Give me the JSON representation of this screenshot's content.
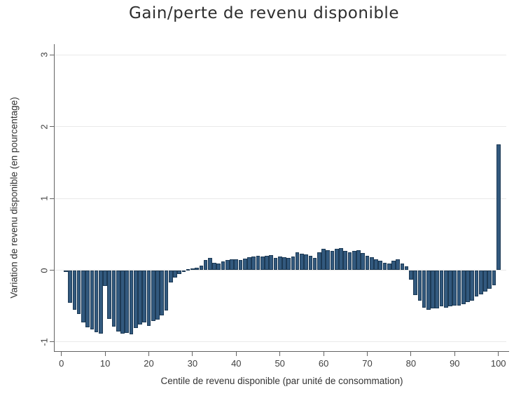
{
  "title": "Gain/perte de revenu disponible",
  "chart_data": {
    "type": "bar",
    "title": "Gain/perte de revenu disponible",
    "xlabel": "Centile de revenu disponible (par unité de consommation)",
    "ylabel": "Variation de revenu disponible (en pourcentage)",
    "x_tick_labels": [
      0,
      10,
      20,
      30,
      40,
      50,
      60,
      70,
      80,
      90,
      100
    ],
    "y_tick_labels": [
      -1,
      0,
      1,
      2,
      3
    ],
    "ylim": [
      -1.15,
      3.15
    ],
    "xlim": [
      -1.5,
      102.5
    ],
    "grid": "horizontal-light",
    "legend": "none",
    "bar_fill_color": "#32597e",
    "bar_border_color": "#1d3a55",
    "axis_color": "#636363",
    "gridline_color": "#e9e9e9",
    "categories": [
      1,
      2,
      3,
      4,
      5,
      6,
      7,
      8,
      9,
      10,
      11,
      12,
      13,
      14,
      15,
      16,
      17,
      18,
      19,
      20,
      21,
      22,
      23,
      24,
      25,
      26,
      27,
      28,
      29,
      30,
      31,
      32,
      33,
      34,
      35,
      36,
      37,
      38,
      39,
      40,
      41,
      42,
      43,
      44,
      45,
      46,
      47,
      48,
      49,
      50,
      51,
      52,
      53,
      54,
      55,
      56,
      57,
      58,
      59,
      60,
      61,
      62,
      63,
      64,
      65,
      66,
      67,
      68,
      69,
      70,
      71,
      72,
      73,
      74,
      75,
      76,
      77,
      78,
      79,
      80,
      81,
      82,
      83,
      84,
      85,
      86,
      87,
      88,
      89,
      90,
      91,
      92,
      93,
      94,
      95,
      96,
      97,
      98,
      99,
      100
    ],
    "values": [
      -0.02,
      -0.45,
      -0.55,
      -0.61,
      -0.73,
      -0.8,
      -0.83,
      -0.86,
      -0.88,
      -0.22,
      -0.68,
      -0.79,
      -0.85,
      -0.88,
      -0.87,
      -0.89,
      -0.81,
      -0.76,
      -0.73,
      -0.78,
      -0.71,
      -0.69,
      -0.63,
      -0.56,
      -0.17,
      -0.1,
      -0.05,
      -0.02,
      0.01,
      0.02,
      0.03,
      0.06,
      0.14,
      0.17,
      0.1,
      0.09,
      0.12,
      0.14,
      0.15,
      0.15,
      0.14,
      0.16,
      0.18,
      0.19,
      0.2,
      0.19,
      0.2,
      0.21,
      0.17,
      0.19,
      0.18,
      0.17,
      0.19,
      0.25,
      0.23,
      0.22,
      0.2,
      0.17,
      0.25,
      0.3,
      0.28,
      0.27,
      0.3,
      0.31,
      0.27,
      0.25,
      0.27,
      0.28,
      0.24,
      0.2,
      0.18,
      0.15,
      0.13,
      0.1,
      0.09,
      0.13,
      0.15,
      0.09,
      0.05,
      -0.13,
      -0.35,
      -0.42,
      -0.52,
      -0.55,
      -0.53,
      -0.53,
      -0.5,
      -0.52,
      -0.5,
      -0.49,
      -0.49,
      -0.47,
      -0.44,
      -0.42,
      -0.37,
      -0.34,
      -0.3,
      -0.26,
      -0.21,
      1.75
    ]
  }
}
